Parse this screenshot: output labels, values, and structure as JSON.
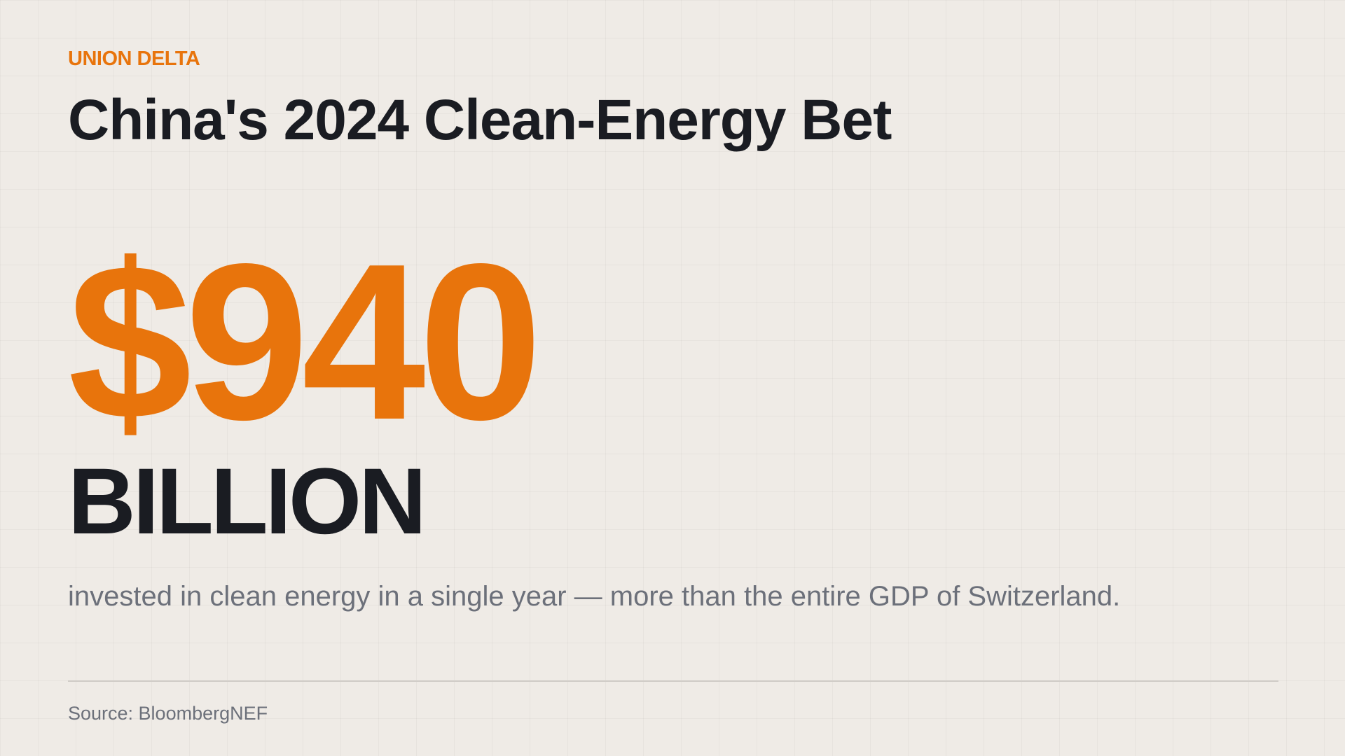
{
  "brand": "UNION DELTA",
  "title": "China's 2024 Clean-Energy Bet",
  "stat": {
    "value": "$940",
    "unit": "BILLION"
  },
  "description": "invested in clean energy in a single year — more than the entire GDP of Switzerland.",
  "source": "Source: BloombergNEF"
}
